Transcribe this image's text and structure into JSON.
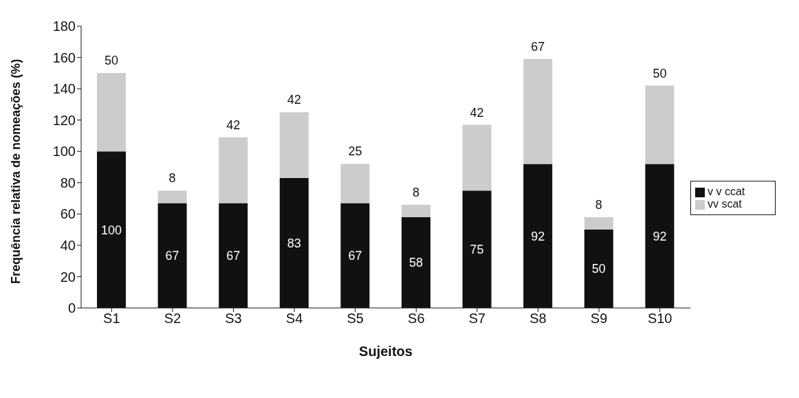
{
  "chart_data": {
    "type": "bar",
    "stacked": true,
    "xlabel": "Sujeitos",
    "ylabel": "Frequência relativa de nomeações (%)",
    "categories": [
      "S1",
      "S2",
      "S3",
      "S4",
      "S5",
      "S6",
      "S7",
      "S8",
      "S9",
      "S10"
    ],
    "series": [
      {
        "name": "v v ccat",
        "color": "#111111",
        "values": [
          100,
          67,
          67,
          83,
          67,
          58,
          75,
          92,
          50,
          92
        ]
      },
      {
        "name": "vv scat",
        "color": "#cccccc",
        "values": [
          50,
          8,
          42,
          42,
          25,
          8,
          42,
          67,
          8,
          50
        ]
      }
    ],
    "ylim": [
      0,
      180
    ],
    "yticks": [
      0,
      20,
      40,
      60,
      80,
      100,
      120,
      140,
      160,
      180
    ],
    "grid": false,
    "legend": "right",
    "data_labels": true
  }
}
